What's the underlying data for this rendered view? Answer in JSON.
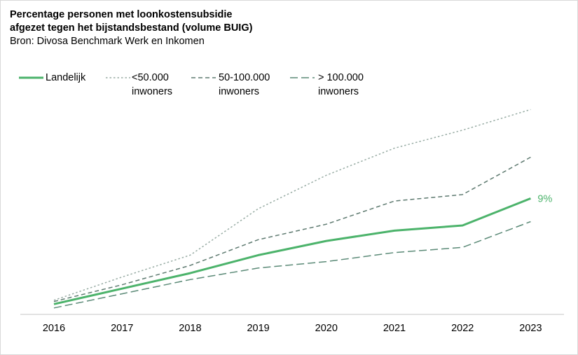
{
  "title_line1": "Percentage personen met loonkostensubsidie",
  "title_line2": "afgezet tegen het bijstandsbestand (volume BUIG)",
  "source": "Bron: Divosa Benchmark Werk en Inkomen",
  "colors": {
    "landelijk": "#4cb36b",
    "small": "#98aca4",
    "medium": "#5e7a70",
    "large": "#5b8a77",
    "axis": "#d9d9d9"
  },
  "chart_data": {
    "type": "line",
    "x": [
      "2016",
      "2017",
      "2018",
      "2019",
      "2020",
      "2021",
      "2022",
      "2023"
    ],
    "series": [
      {
        "name": "Landelijk",
        "values": [
          0.8,
          2.0,
          3.2,
          4.6,
          5.7,
          6.5,
          6.9,
          9.0
        ],
        "style": "solid"
      },
      {
        "name": "<50.000 inwoners",
        "values": [
          1.1,
          2.9,
          4.6,
          8.2,
          10.8,
          12.9,
          14.3,
          15.9
        ],
        "style": "dotted"
      },
      {
        "name": "50-100.000 inwoners",
        "values": [
          1.0,
          2.3,
          3.8,
          5.8,
          7.0,
          8.8,
          9.3,
          12.2
        ],
        "style": "dashed"
      },
      {
        "name": "> 100.000 inwoners",
        "values": [
          0.5,
          1.6,
          2.7,
          3.6,
          4.1,
          4.8,
          5.2,
          7.2
        ],
        "style": "longdash"
      }
    ],
    "legend": [
      {
        "line1": "Landelijk",
        "line2": ""
      },
      {
        "line1": "<50.000",
        "line2": "inwoners"
      },
      {
        "line1": "50-100.000",
        "line2": "inwoners"
      },
      {
        "line1": "> 100.000",
        "line2": "inwoners"
      }
    ],
    "annotation": "9%",
    "ylim": [
      0,
      18
    ],
    "grid": false,
    "legend_position": "top-left"
  }
}
